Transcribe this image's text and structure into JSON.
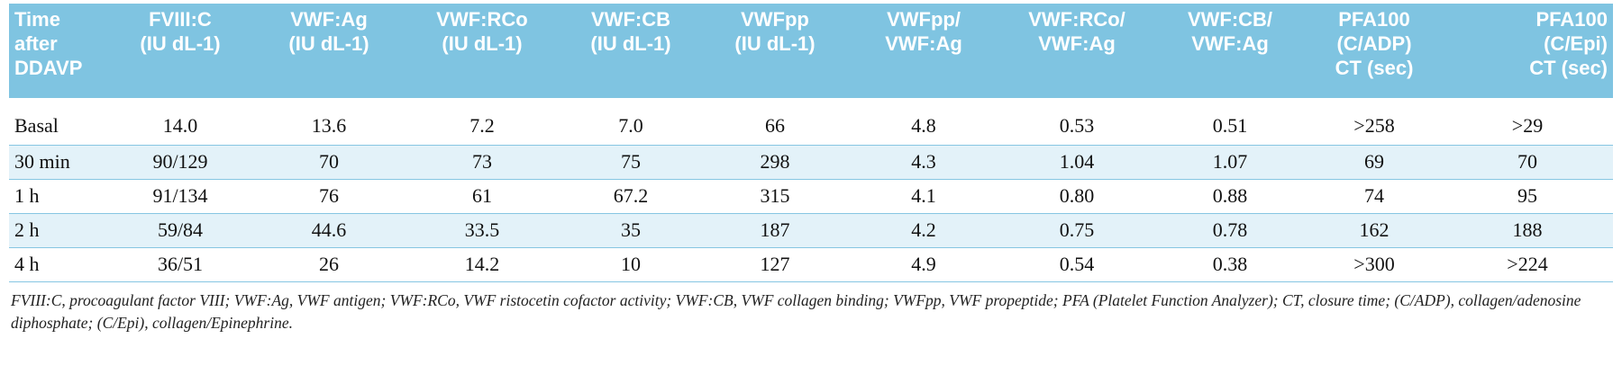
{
  "table": {
    "headers": [
      [
        "Time",
        "after",
        "DDAVP"
      ],
      [
        "FVIII:C",
        "(IU dL-1)"
      ],
      [
        "VWF:Ag",
        "(IU dL-1)"
      ],
      [
        "VWF:RCo",
        "(IU dL-1)"
      ],
      [
        "VWF:CB",
        "(IU dL-1)"
      ],
      [
        "VWFpp",
        "(IU dL-1)"
      ],
      [
        "VWFpp/",
        "VWF:Ag"
      ],
      [
        "VWF:RCo/",
        "VWF:Ag"
      ],
      [
        "VWF:CB/",
        "VWF:Ag"
      ],
      [
        "PFA100",
        "(C/ADP)",
        "CT (sec)"
      ],
      [
        "PFA100",
        "(C/Epi)",
        "CT (sec)"
      ]
    ],
    "rows": [
      [
        "Basal",
        "14.0",
        "13.6",
        "7.2",
        "7.0",
        "66",
        "4.8",
        "0.53",
        "0.51",
        ">258",
        ">29"
      ],
      [
        "30 min",
        "90/129",
        "70",
        "73",
        "75",
        "298",
        "4.3",
        "1.04",
        "1.07",
        "69",
        "70"
      ],
      [
        "1 h",
        "91/134",
        "76",
        "61",
        "67.2",
        "315",
        "4.1",
        "0.80",
        "0.88",
        "74",
        "95"
      ],
      [
        "2 h",
        "59/84",
        "44.6",
        "33.5",
        "35",
        "187",
        "4.2",
        "0.75",
        "0.78",
        "162",
        "188"
      ],
      [
        "4 h",
        "36/51",
        "26",
        "14.2",
        "10",
        "127",
        "4.9",
        "0.54",
        "0.38",
        ">300",
        ">224"
      ]
    ],
    "header_bg": "#7fc4e1",
    "shade_bg": "#e3f2f9"
  },
  "footnote": "FVIII:C, procoagulant factor VIII; VWF:Ag, VWF antigen; VWF:RCo, VWF ristocetin cofactor activity; VWF:CB, VWF collagen binding; VWFpp, VWF propeptide; PFA (Platelet Function Analyzer); CT, closure time; (C/ADP), collagen/adenosine diphosphate; (C/Epi), collagen/Epinephrine."
}
